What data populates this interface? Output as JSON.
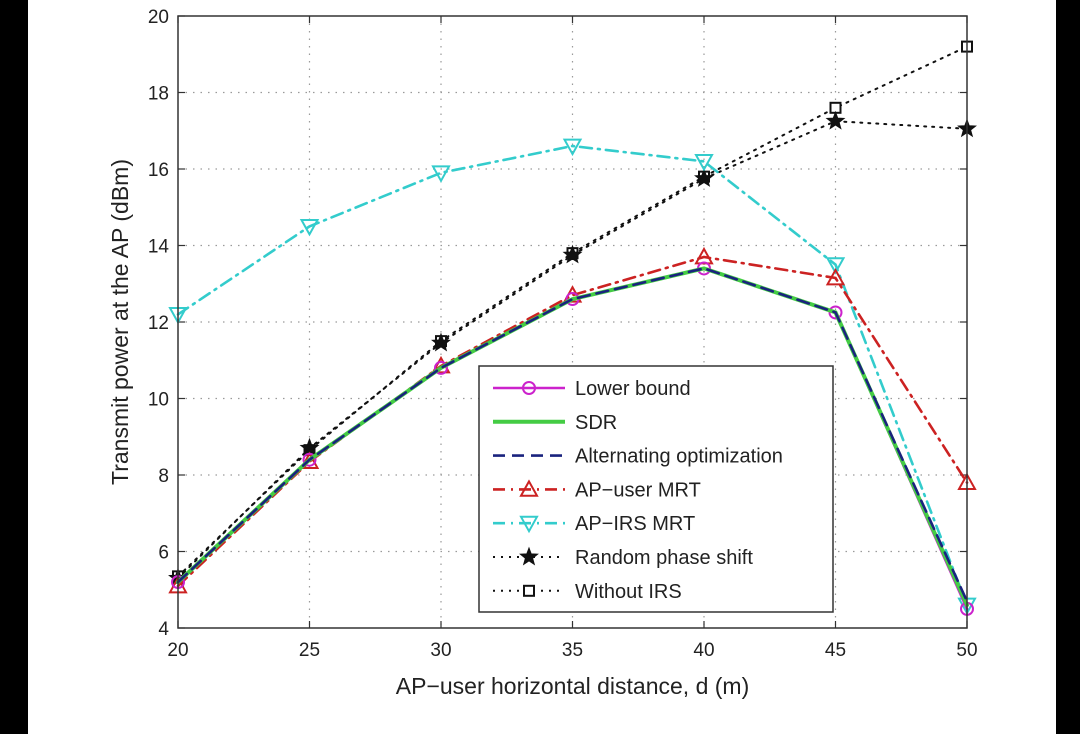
{
  "chart_data": {
    "type": "line",
    "title": "",
    "xlabel": "AP−user horizontal distance, d (m)",
    "ylabel": "Transmit power at the AP (dBm)",
    "x": [
      20,
      25,
      30,
      35,
      40,
      45,
      50
    ],
    "xlim": [
      20,
      50
    ],
    "ylim": [
      4,
      20
    ],
    "xticks": [
      "20",
      "25",
      "30",
      "35",
      "40",
      "45",
      "50"
    ],
    "yticks": [
      "4",
      "6",
      "8",
      "10",
      "12",
      "14",
      "16",
      "18",
      "20"
    ],
    "grid": true,
    "legend_position": "lower-right",
    "series": [
      {
        "name": "Lower bound",
        "color": "#cc22cc",
        "dash": "solid",
        "marker": "circle",
        "values": [
          5.2,
          8.4,
          10.8,
          12.6,
          13.4,
          12.25,
          4.5
        ]
      },
      {
        "name": "SDR",
        "color": "#44cc44",
        "dash": "solid",
        "marker": "none",
        "values": [
          5.2,
          8.4,
          10.8,
          12.6,
          13.4,
          12.25,
          4.6
        ]
      },
      {
        "name": "Alternating optimization",
        "color": "#1a237e",
        "dash": "dashed",
        "marker": "none",
        "values": [
          5.2,
          8.4,
          10.8,
          12.6,
          13.4,
          12.25,
          4.7
        ]
      },
      {
        "name": "AP−user MRT",
        "color": "#cc2222",
        "dash": "dashdot",
        "marker": "triangle-up",
        "values": [
          5.1,
          8.35,
          10.85,
          12.7,
          13.7,
          13.15,
          7.8
        ]
      },
      {
        "name": "AP−IRS MRT",
        "color": "#33cccc",
        "dash": "dashdot",
        "marker": "triangle-down",
        "values": [
          12.2,
          14.5,
          15.9,
          16.6,
          16.2,
          13.5,
          4.6
        ]
      },
      {
        "name": "Random phase shift",
        "color": "#111111",
        "dash": "dotted",
        "marker": "star",
        "values": [
          5.3,
          8.7,
          11.45,
          13.75,
          15.75,
          17.25,
          17.05
        ]
      },
      {
        "name": "Without IRS",
        "color": "#111111",
        "dash": "dotted",
        "marker": "square",
        "values": [
          5.35,
          8.65,
          11.5,
          13.8,
          15.8,
          17.6,
          19.2
        ]
      }
    ]
  }
}
